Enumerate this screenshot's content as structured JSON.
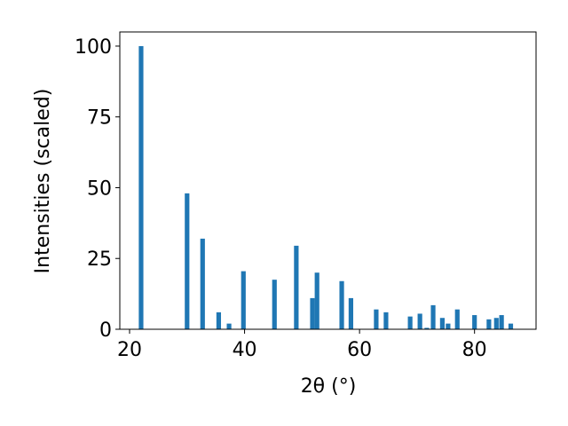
{
  "chart_data": {
    "type": "bar",
    "xlabel": "2θ (°)",
    "ylabel": "Intensities (scaled)",
    "x": [
      22.0,
      30.0,
      32.7,
      35.5,
      37.3,
      39.8,
      45.2,
      49.0,
      51.8,
      52.6,
      56.9,
      58.5,
      62.9,
      64.6,
      68.8,
      70.5,
      71.7,
      72.8,
      74.4,
      75.4,
      77.0,
      80.0,
      82.5,
      83.8,
      84.7,
      86.3
    ],
    "values": [
      100,
      48,
      32,
      6,
      2,
      20.5,
      17.5,
      29.5,
      11,
      20,
      17,
      11,
      7,
      6,
      4.5,
      5.5,
      0.5,
      8.5,
      4,
      2,
      7,
      5,
      3.5,
      4,
      5,
      2
    ],
    "color": "#1f77b4",
    "xlim": [
      18.3,
      90.7
    ],
    "xticks": [
      20,
      40,
      60,
      80
    ],
    "ylim": [
      0,
      105
    ],
    "yticks": [
      0,
      25,
      50,
      75,
      100
    ]
  }
}
